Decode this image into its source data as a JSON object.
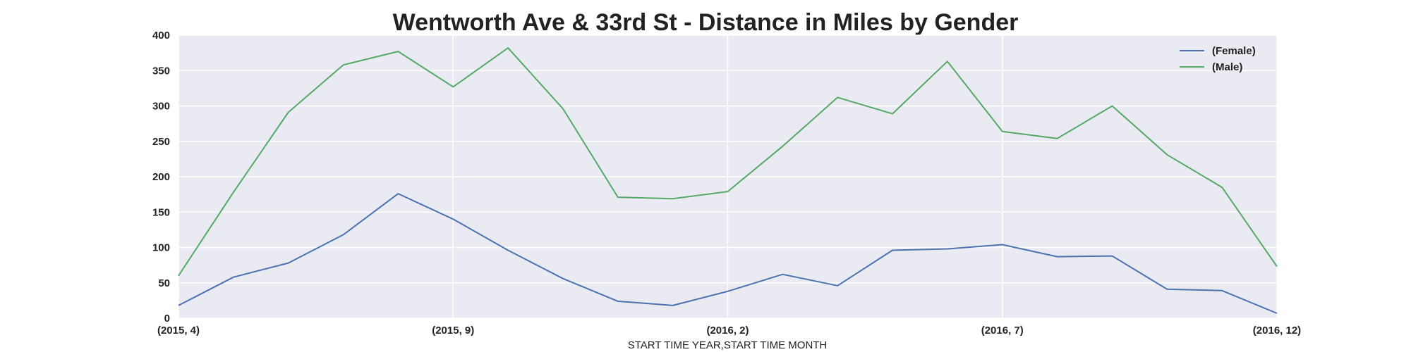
{
  "chart_data": {
    "type": "line",
    "title": "Wentworth Ave & 33rd St - Distance in Miles by Gender",
    "xlabel": "START TIME YEAR,START TIME MONTH",
    "ylabel": "",
    "x": [
      "(2015, 4)",
      "(2015, 5)",
      "(2015, 6)",
      "(2015, 7)",
      "(2015, 8)",
      "(2015, 9)",
      "(2015, 10)",
      "(2015, 11)",
      "(2015, 12)",
      "(2016, 1)",
      "(2016, 2)",
      "(2016, 3)",
      "(2016, 4)",
      "(2016, 5)",
      "(2016, 6)",
      "(2016, 7)",
      "(2016, 8)",
      "(2016, 9)",
      "(2016, 10)",
      "(2016, 11)",
      "(2016, 12)"
    ],
    "x_tick_labels": [
      "(2015, 4)",
      "(2015, 9)",
      "(2016, 2)",
      "(2016, 7)",
      "(2016, 12)"
    ],
    "ylim": [
      0,
      400
    ],
    "y_ticks": [
      0,
      50,
      100,
      150,
      200,
      250,
      300,
      350,
      400
    ],
    "grid": true,
    "legend_position": "top-right",
    "series": [
      {
        "name": "(Female)",
        "color": "#4c72b0",
        "values": [
          18,
          58,
          78,
          118,
          176,
          140,
          96,
          56,
          24,
          18,
          38,
          62,
          46,
          96,
          98,
          104,
          87,
          88,
          41,
          39,
          7
        ]
      },
      {
        "name": "(Male)",
        "color": "#55a868",
        "values": [
          60,
          178,
          291,
          358,
          377,
          327,
          382,
          296,
          171,
          169,
          179,
          243,
          312,
          289,
          363,
          264,
          254,
          300,
          231,
          185,
          73
        ]
      }
    ]
  }
}
